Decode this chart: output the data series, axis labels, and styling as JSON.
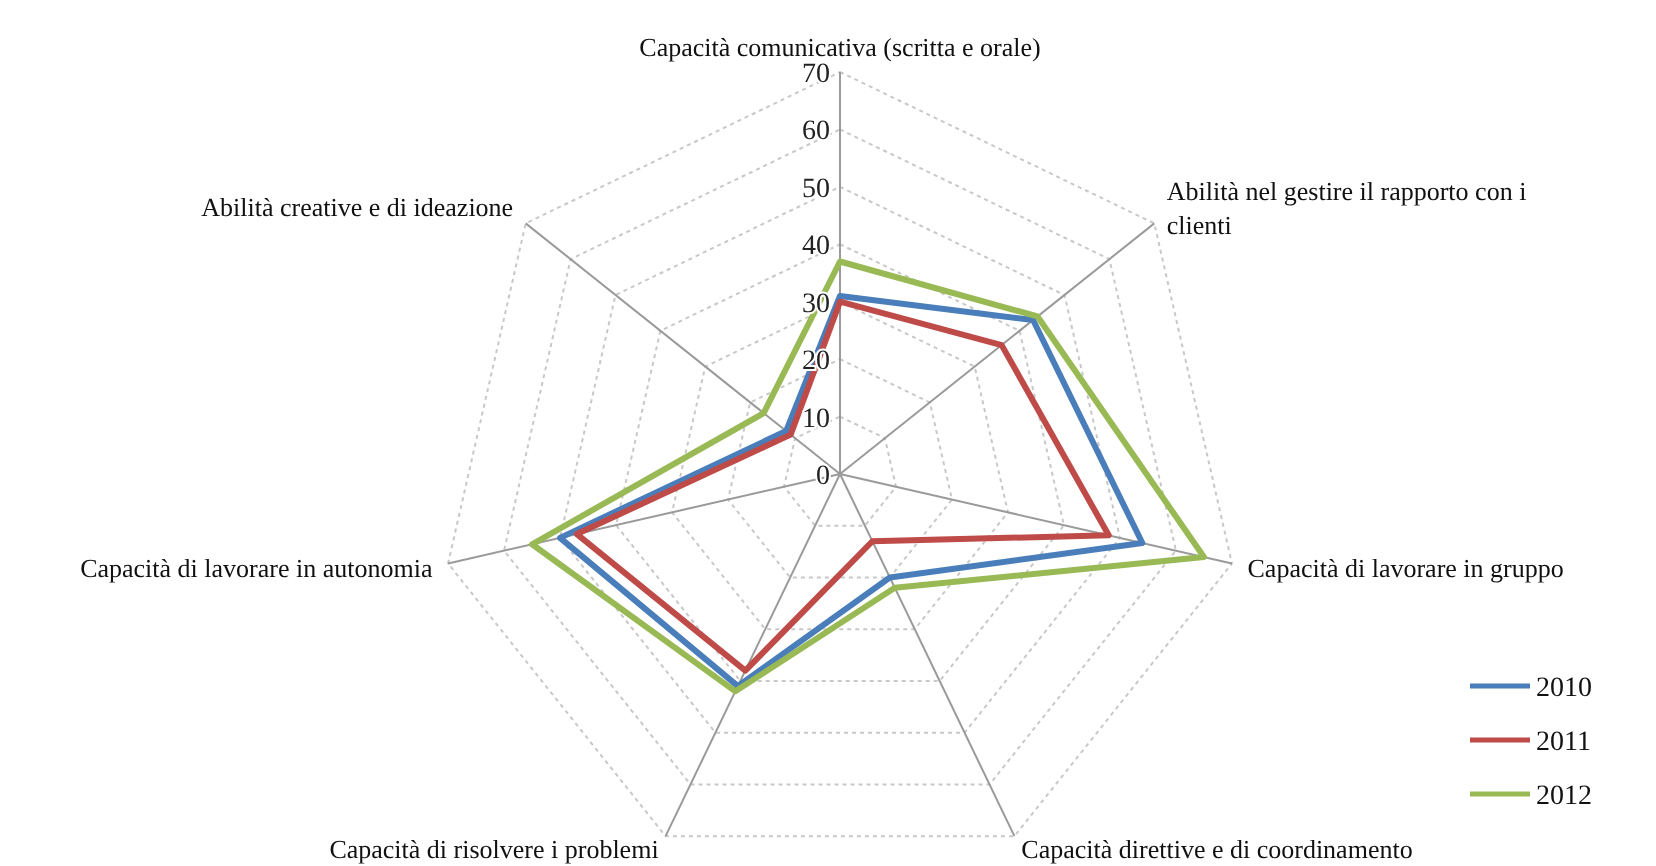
{
  "chart_data": {
    "type": "radar",
    "categories": [
      "Capacità comunicativa (scritta e orale)",
      "Abilità nel gestire il rapporto con i clienti",
      "Capacità di lavorare in gruppo",
      "Capacità direttive e di coordinamento",
      "Capacità di risolvere i problemi",
      "Capacità di lavorare in autonomia",
      "Abilità creative e di ideazione"
    ],
    "series": [
      {
        "name": "2010",
        "color": "#4a7ebb",
        "values": [
          31,
          43,
          54,
          20,
          41,
          50,
          12
        ]
      },
      {
        "name": "2011",
        "color": "#be4b48",
        "values": [
          30,
          36,
          48,
          13,
          38,
          47,
          11
        ]
      },
      {
        "name": "2012",
        "color": "#98b954",
        "values": [
          37,
          44,
          65,
          22,
          42,
          55,
          17
        ]
      }
    ],
    "ylim": [
      0,
      70
    ],
    "yticks": [
      0,
      10,
      20,
      30,
      40,
      50,
      60,
      70
    ],
    "grid": true,
    "legend": "right"
  }
}
